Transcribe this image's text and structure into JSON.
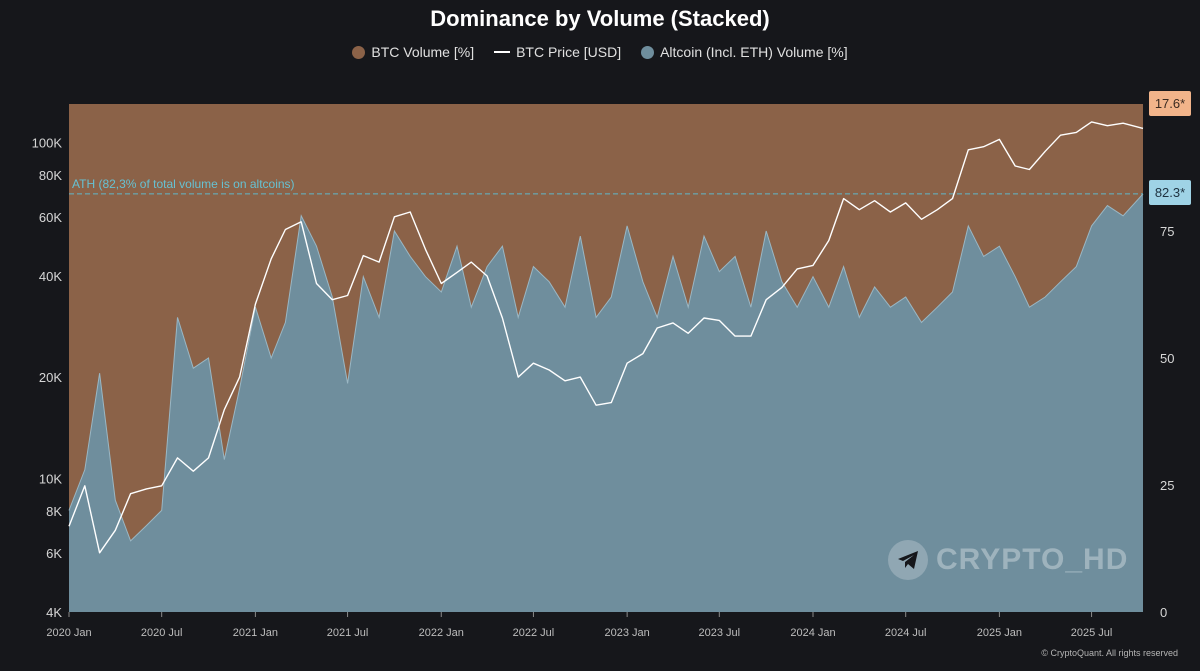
{
  "chart_data": {
    "type": "area",
    "title": "Dominance by Volume (Stacked)",
    "legend": {
      "placement": "top-center",
      "items": [
        {
          "label": "BTC Volume [%]",
          "color": "#8b6248",
          "marker": "dot"
        },
        {
          "label": "BTC Price [USD]",
          "color": "#ffffff",
          "marker": "line"
        },
        {
          "label": "Altcoin (Incl. ETH) Volume [%]",
          "color": "#6f8e9d",
          "marker": "dot"
        }
      ]
    },
    "x_axis": {
      "range": [
        "2020-01-01",
        "2025-10-10"
      ],
      "ticks": [
        "2020 Jan",
        "2020 Jul",
        "2021 Jan",
        "2021 Jul",
        "2022 Jan",
        "2022 Jul",
        "2023 Jan",
        "2023 Jul",
        "2024 Jan",
        "2024 Jul",
        "2025 Jan",
        "2025 Jul"
      ]
    },
    "y_left": {
      "scale": "log",
      "range": [
        4000,
        130000
      ],
      "ticks": [
        "100K",
        "80K",
        "60K",
        "40K",
        "20K",
        "10K",
        "8K",
        "6K",
        "4K"
      ],
      "tick_values": [
        100000,
        80000,
        60000,
        40000,
        20000,
        10000,
        8000,
        6000,
        4000
      ]
    },
    "y_right": {
      "scale": "linear",
      "range": [
        0,
        100
      ],
      "ticks": [
        "75",
        "50",
        "25",
        "0"
      ],
      "tick_values": [
        75,
        50,
        25,
        0
      ]
    },
    "grid": false,
    "ath_line": {
      "label": "ATH (82,3% of total volume is on altcoins)",
      "value": 82.3,
      "color": "#5fb7c9"
    },
    "badges": [
      {
        "text": "17.6*",
        "color": "#f2b48a"
      },
      {
        "text": "82.3*",
        "color": "#9fd3e6"
      }
    ],
    "series": [
      {
        "name": "Altcoin (Incl. ETH) Volume [%]",
        "color": "#6f8e9d",
        "points": [
          [
            "2020-01-01",
            20
          ],
          [
            "2020-02-01",
            28
          ],
          [
            "2020-03-01",
            47
          ],
          [
            "2020-04-01",
            22
          ],
          [
            "2020-05-01",
            14
          ],
          [
            "2020-06-01",
            17
          ],
          [
            "2020-07-01",
            20
          ],
          [
            "2020-08-01",
            58
          ],
          [
            "2020-09-01",
            48
          ],
          [
            "2020-10-01",
            50
          ],
          [
            "2020-11-01",
            30
          ],
          [
            "2020-12-01",
            44
          ],
          [
            "2021-01-01",
            60
          ],
          [
            "2021-02-01",
            50
          ],
          [
            "2021-03-01",
            57
          ],
          [
            "2021-04-01",
            78
          ],
          [
            "2021-05-01",
            72
          ],
          [
            "2021-06-01",
            62
          ],
          [
            "2021-07-01",
            45
          ],
          [
            "2021-08-01",
            66
          ],
          [
            "2021-09-01",
            58
          ],
          [
            "2021-10-01",
            75
          ],
          [
            "2021-11-01",
            70
          ],
          [
            "2021-12-01",
            66
          ],
          [
            "2022-01-01",
            63
          ],
          [
            "2022-02-01",
            72
          ],
          [
            "2022-03-01",
            60
          ],
          [
            "2022-04-01",
            68
          ],
          [
            "2022-05-01",
            72
          ],
          [
            "2022-06-01",
            58
          ],
          [
            "2022-07-01",
            68
          ],
          [
            "2022-08-01",
            65
          ],
          [
            "2022-09-01",
            60
          ],
          [
            "2022-10-01",
            74
          ],
          [
            "2022-11-01",
            58
          ],
          [
            "2022-12-01",
            62
          ],
          [
            "2023-01-01",
            76
          ],
          [
            "2023-02-01",
            65
          ],
          [
            "2023-03-01",
            58
          ],
          [
            "2023-04-01",
            70
          ],
          [
            "2023-05-01",
            60
          ],
          [
            "2023-06-01",
            74
          ],
          [
            "2023-07-01",
            67
          ],
          [
            "2023-08-01",
            70
          ],
          [
            "2023-09-01",
            60
          ],
          [
            "2023-10-01",
            75
          ],
          [
            "2023-11-01",
            65
          ],
          [
            "2023-12-01",
            60
          ],
          [
            "2024-01-01",
            66
          ],
          [
            "2024-02-01",
            60
          ],
          [
            "2024-03-01",
            68
          ],
          [
            "2024-04-01",
            58
          ],
          [
            "2024-05-01",
            64
          ],
          [
            "2024-06-01",
            60
          ],
          [
            "2024-07-01",
            62
          ],
          [
            "2024-08-01",
            57
          ],
          [
            "2024-09-01",
            60
          ],
          [
            "2024-10-01",
            63
          ],
          [
            "2024-11-01",
            76
          ],
          [
            "2024-12-01",
            70
          ],
          [
            "2025-01-01",
            72
          ],
          [
            "2025-02-01",
            66
          ],
          [
            "2025-03-01",
            60
          ],
          [
            "2025-04-01",
            62
          ],
          [
            "2025-05-01",
            65
          ],
          [
            "2025-06-01",
            68
          ],
          [
            "2025-07-01",
            76
          ],
          [
            "2025-08-01",
            80
          ],
          [
            "2025-09-01",
            78
          ],
          [
            "2025-10-10",
            82.3
          ]
        ]
      },
      {
        "name": "BTC Volume [%]",
        "color": "#8b6248",
        "note_value": 17.6
      },
      {
        "name": "BTC Price [USD]",
        "color": "#ffffff",
        "points": [
          [
            "2020-01-01",
            7200
          ],
          [
            "2020-02-01",
            9500
          ],
          [
            "2020-03-01",
            6000
          ],
          [
            "2020-04-01",
            7000
          ],
          [
            "2020-05-01",
            9000
          ],
          [
            "2020-06-01",
            9300
          ],
          [
            "2020-07-01",
            9500
          ],
          [
            "2020-08-01",
            11500
          ],
          [
            "2020-09-01",
            10500
          ],
          [
            "2020-10-01",
            11500
          ],
          [
            "2020-11-01",
            16000
          ],
          [
            "2020-12-01",
            20000
          ],
          [
            "2021-01-01",
            33000
          ],
          [
            "2021-02-01",
            45000
          ],
          [
            "2021-03-01",
            55000
          ],
          [
            "2021-04-01",
            58000
          ],
          [
            "2021-05-01",
            38000
          ],
          [
            "2021-06-01",
            34000
          ],
          [
            "2021-07-01",
            35000
          ],
          [
            "2021-08-01",
            46000
          ],
          [
            "2021-09-01",
            44000
          ],
          [
            "2021-10-01",
            60000
          ],
          [
            "2021-11-01",
            62000
          ],
          [
            "2021-12-01",
            48000
          ],
          [
            "2022-01-01",
            38000
          ],
          [
            "2022-02-01",
            41000
          ],
          [
            "2022-03-01",
            44000
          ],
          [
            "2022-04-01",
            40000
          ],
          [
            "2022-05-01",
            30000
          ],
          [
            "2022-06-01",
            20000
          ],
          [
            "2022-07-01",
            22000
          ],
          [
            "2022-08-01",
            21000
          ],
          [
            "2022-09-01",
            19500
          ],
          [
            "2022-10-01",
            20000
          ],
          [
            "2022-11-01",
            16500
          ],
          [
            "2022-12-01",
            16800
          ],
          [
            "2023-01-01",
            22000
          ],
          [
            "2023-02-01",
            23500
          ],
          [
            "2023-03-01",
            28000
          ],
          [
            "2023-04-01",
            29000
          ],
          [
            "2023-05-01",
            27000
          ],
          [
            "2023-06-01",
            30000
          ],
          [
            "2023-07-01",
            29500
          ],
          [
            "2023-08-01",
            26500
          ],
          [
            "2023-09-01",
            26500
          ],
          [
            "2023-10-01",
            34000
          ],
          [
            "2023-11-01",
            37000
          ],
          [
            "2023-12-01",
            42000
          ],
          [
            "2024-01-01",
            43000
          ],
          [
            "2024-02-01",
            51000
          ],
          [
            "2024-03-01",
            68000
          ],
          [
            "2024-04-01",
            63000
          ],
          [
            "2024-05-01",
            67000
          ],
          [
            "2024-06-01",
            62000
          ],
          [
            "2024-07-01",
            66000
          ],
          [
            "2024-08-01",
            59000
          ],
          [
            "2024-09-01",
            63000
          ],
          [
            "2024-10-01",
            68000
          ],
          [
            "2024-11-01",
            95000
          ],
          [
            "2024-12-01",
            97000
          ],
          [
            "2025-01-01",
            102000
          ],
          [
            "2025-02-01",
            85000
          ],
          [
            "2025-03-01",
            83000
          ],
          [
            "2025-04-01",
            94000
          ],
          [
            "2025-05-01",
            105000
          ],
          [
            "2025-06-01",
            107000
          ],
          [
            "2025-07-01",
            115000
          ],
          [
            "2025-08-01",
            112000
          ],
          [
            "2025-09-01",
            114000
          ],
          [
            "2025-10-10",
            110000
          ]
        ]
      }
    ]
  },
  "watermark": {
    "text": "CRYPTO_HD",
    "icon": "telegram-icon"
  },
  "copyright": "© CryptoQuant. All rights reserved"
}
